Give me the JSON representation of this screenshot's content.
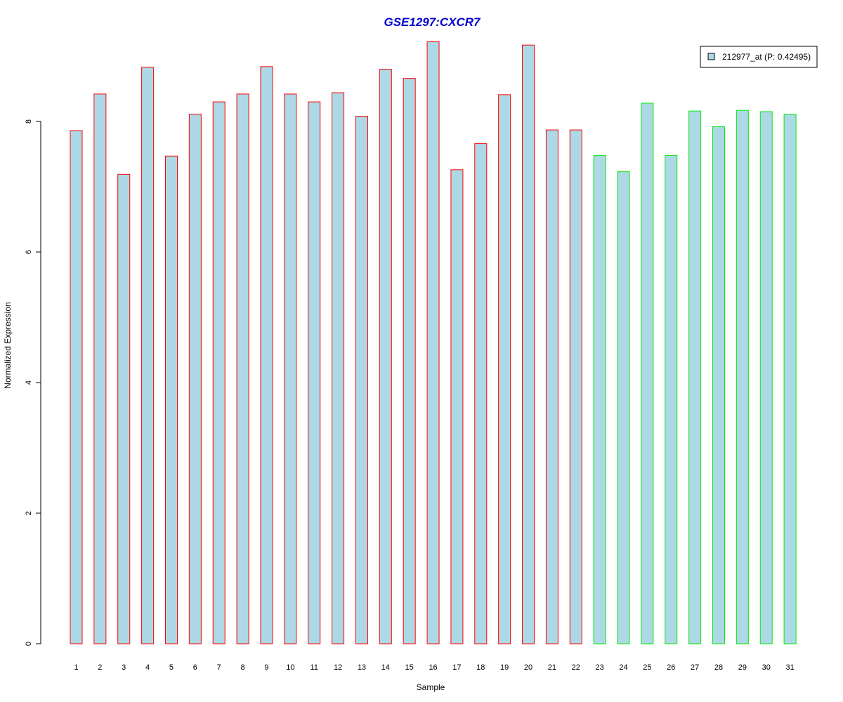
{
  "chart_data": {
    "type": "bar",
    "title": "GSE1297:CXCR7",
    "xlabel": "Sample",
    "ylabel": "Normalized Expression",
    "categories": [
      "1",
      "2",
      "3",
      "4",
      "5",
      "6",
      "7",
      "8",
      "9",
      "10",
      "11",
      "12",
      "13",
      "14",
      "15",
      "16",
      "17",
      "18",
      "19",
      "20",
      "21",
      "22",
      "23",
      "24",
      "25",
      "26",
      "27",
      "28",
      "29",
      "30",
      "31"
    ],
    "series": [
      {
        "name": "212977_at (P: 0.42495)",
        "values": [
          7.86,
          8.42,
          7.19,
          8.83,
          7.47,
          8.11,
          8.3,
          8.42,
          8.84,
          8.42,
          8.3,
          8.44,
          8.08,
          8.8,
          8.66,
          9.22,
          7.26,
          7.66,
          8.41,
          9.17,
          7.87,
          7.87,
          7.48,
          7.23,
          8.28,
          7.48,
          8.16,
          7.92,
          8.17,
          8.15,
          8.11
        ],
        "groups": [
          "red",
          "red",
          "red",
          "red",
          "red",
          "red",
          "red",
          "red",
          "red",
          "red",
          "red",
          "red",
          "red",
          "red",
          "red",
          "red",
          "red",
          "red",
          "red",
          "red",
          "red",
          "red",
          "green",
          "green",
          "green",
          "green",
          "green",
          "green",
          "green",
          "green",
          "green"
        ]
      }
    ],
    "yticks": [
      0,
      2,
      4,
      6,
      8
    ],
    "ylim": [
      0,
      9.22
    ],
    "legend_position": "top-right",
    "grid": false,
    "colors": {
      "title": "#0000CD",
      "bar_fill": "#ADD8E6",
      "border_red": "#FF0000",
      "border_green": "#00EE00"
    }
  }
}
